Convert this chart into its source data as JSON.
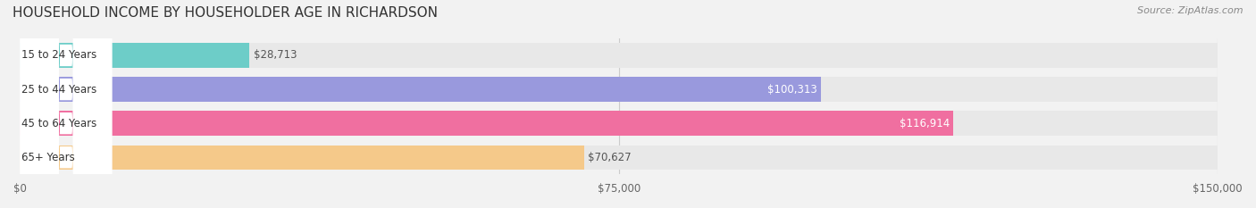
{
  "title": "HOUSEHOLD INCOME BY HOUSEHOLDER AGE IN RICHARDSON",
  "source": "Source: ZipAtlas.com",
  "categories": [
    "15 to 24 Years",
    "25 to 44 Years",
    "45 to 64 Years",
    "65+ Years"
  ],
  "values": [
    28713,
    100313,
    116914,
    70627
  ],
  "bar_colors": [
    "#6dcdc8",
    "#9999dd",
    "#f06fa0",
    "#f5c98a"
  ],
  "bar_label_colors": [
    "#555555",
    "#ffffff",
    "#ffffff",
    "#555555"
  ],
  "value_labels": [
    "$28,713",
    "$100,313",
    "$116,914",
    "$70,627"
  ],
  "xlim": [
    0,
    150000
  ],
  "xticks": [
    0,
    75000,
    150000
  ],
  "xticklabels": [
    "$0",
    "$75,000",
    "$150,000"
  ],
  "background_color": "#f2f2f2",
  "bar_bg_color": "#e8e8e8",
  "title_fontsize": 11,
  "source_fontsize": 8,
  "label_fontsize": 8.5,
  "value_fontsize": 8.5,
  "tick_fontsize": 8.5
}
